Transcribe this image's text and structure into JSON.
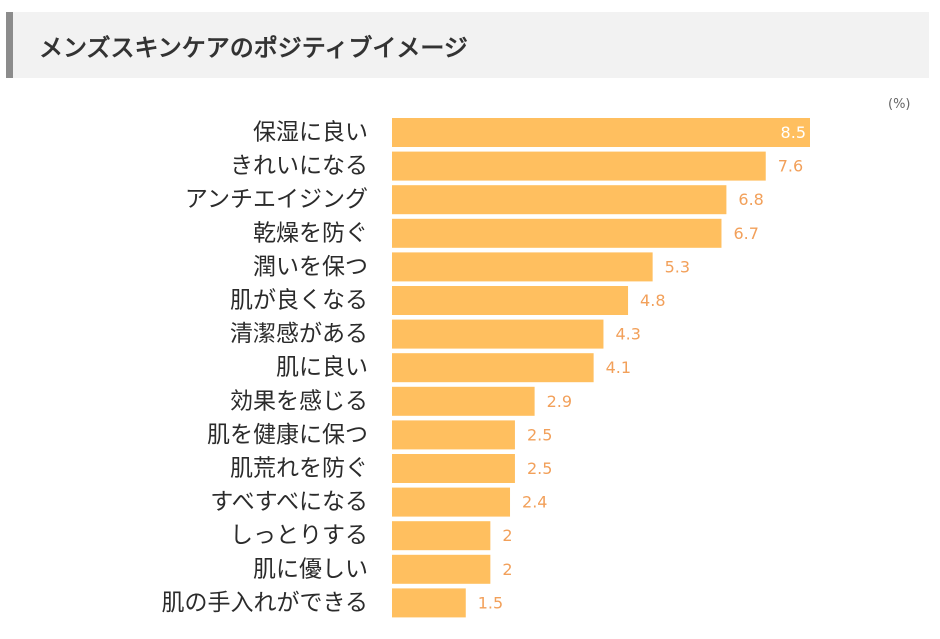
{
  "header": {
    "title": "メンズスキンケアのポジティブイメージ"
  },
  "colors": {
    "bar": "#ffbf5f",
    "value_label_outside": "#f2a05a",
    "value_label_inside": "#ffffff"
  },
  "chart_data": {
    "type": "bar",
    "orientation": "horizontal",
    "unit": "(%)",
    "categories": [
      "保湿に良い",
      "きれいになる",
      "アンチエイジング",
      "乾燥を防ぐ",
      "潤いを保つ",
      "肌が良くなる",
      "清潔感がある",
      "肌に良い",
      "効果を感じる",
      "肌を健康に保つ",
      "肌荒れを防ぐ",
      "すべすべになる",
      "しっとりする",
      "肌に優しい",
      "肌の手入れができる"
    ],
    "values": [
      8.5,
      7.6,
      6.8,
      6.7,
      5.3,
      4.8,
      4.3,
      4.1,
      2.9,
      2.5,
      2.5,
      2.4,
      2,
      2,
      1.5
    ],
    "value_labels": [
      "8.5",
      "7.6",
      "6.8",
      "6.7",
      "5.3",
      "4.8",
      "4.3",
      "4.1",
      "2.9",
      "2.5",
      "2.5",
      "2.4",
      "2",
      "2",
      "1.5"
    ],
    "xlim": [
      0,
      8.5
    ],
    "grid": false,
    "legend": "none"
  }
}
